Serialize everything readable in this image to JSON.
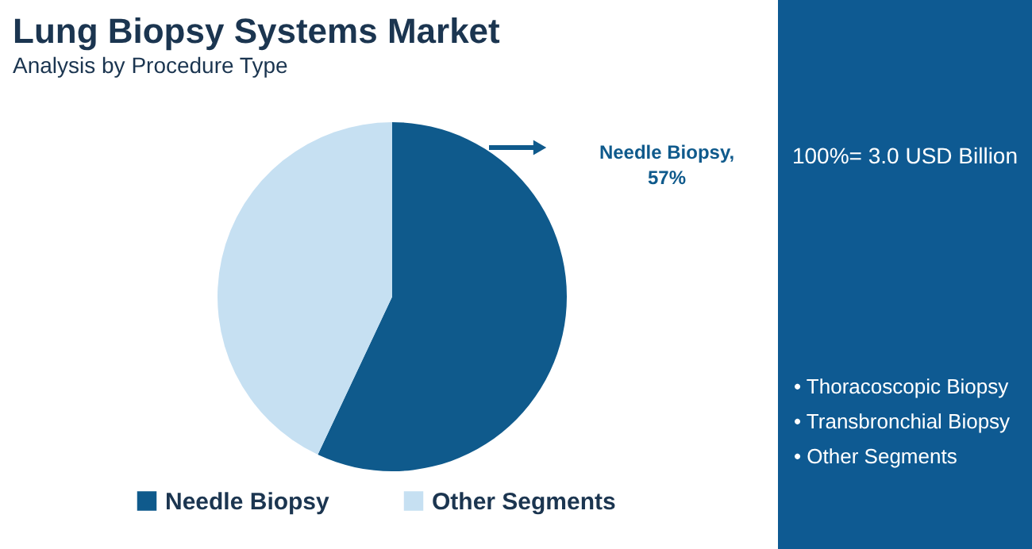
{
  "chart_data": {
    "type": "pie",
    "title": "Lung Biopsy Systems Market",
    "subtitle": "Analysis by Procedure Type",
    "categories": [
      "Needle Biopsy",
      "Other Segments"
    ],
    "values": [
      57,
      43
    ],
    "colors": [
      "#0f5a8c",
      "#c6e0f2"
    ],
    "value_labels": [
      "Needle Biopsy, 57%",
      null
    ],
    "legend": "bottom",
    "annotations": [
      "100%= 3.0 USD Billion",
      "• Thoracoscopic Biopsy",
      "• Transbronchial Biopsy",
      "• Other Segments"
    ]
  }
}
